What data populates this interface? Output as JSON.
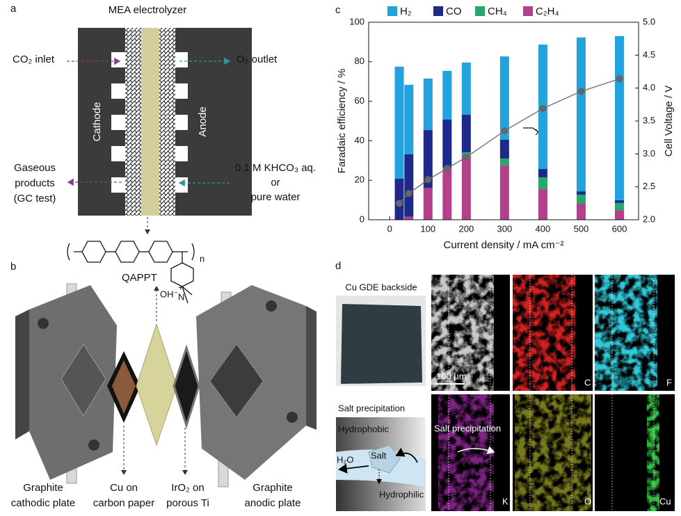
{
  "chart_data": {
    "type": "bar",
    "title_letter": "c",
    "x_label": "Current density / mA cm⁻²",
    "y_label": "Faradaic efficiency / %",
    "y2_label": "Cell Voltage / V",
    "x": [
      25,
      50,
      100,
      150,
      200,
      300,
      400,
      500,
      600
    ],
    "xlim": [
      -55,
      650
    ],
    "xticks": [
      0,
      100,
      200,
      300,
      400,
      500,
      600
    ],
    "ylim": [
      0,
      100
    ],
    "yticks": [
      0,
      20,
      40,
      60,
      80,
      100
    ],
    "y2lim": [
      2,
      5
    ],
    "y2ticks": [
      {
        "value": 2,
        "label": "2.0"
      },
      2.5,
      {
        "value": 3,
        "label": "3.0"
      },
      3.5,
      {
        "value": 4,
        "label": "4.0"
      },
      4.5,
      {
        "value": 5,
        "label": "5.0"
      }
    ],
    "stacked": true,
    "legend": "top",
    "series": [
      {
        "name": "H₂",
        "color": "#23a3dd",
        "values": [
          56.7,
          35.2,
          26.1,
          24.7,
          26.4,
          42.2,
          63,
          77.9,
          83.1
        ]
      },
      {
        "name": "CO",
        "color": "#1d2a8c",
        "values": [
          20.8,
          31.6,
          29.2,
          24.3,
          19,
          9.5,
          4.2,
          1.7,
          1.4
        ]
      },
      {
        "name": "CH₄",
        "color": "#26a86b",
        "values": [
          0,
          0,
          0,
          0,
          1.8,
          3.5,
          6,
          4.6,
          3.6
        ]
      },
      {
        "name": "C₂H₄",
        "color": "#b3408b",
        "values": [
          0,
          1.5,
          16.2,
          26.4,
          32.4,
          27.5,
          15.5,
          8.1,
          4.9
        ]
      },
      {
        "type": "line",
        "axis": "y2",
        "color": "#707070",
        "values": [
          2.25,
          2.4,
          2.61,
          2.78,
          2.95,
          3.35,
          3.69,
          3.95,
          4.14
        ]
      }
    ]
  },
  "panel_a": {
    "letter": "a",
    "title": "MEA electrolyzer",
    "co2_inlet": "CO₂ inlet",
    "o2_outlet": "O₂ outlet",
    "cathode": "Cathode",
    "anode": "Anode",
    "gaseous": [
      "Gaseous",
      "products",
      "(GC test)"
    ],
    "electrolyte": [
      "0.1 M KHCO₃ aq.",
      "or",
      "pure water"
    ],
    "polymer": {
      "name": "QAPPT",
      "n": "n",
      "counterion": "OH⁻",
      "nitrogen": "N",
      "charge": "+"
    }
  },
  "panel_b": {
    "letter": "b",
    "labels": [
      [
        "Graphite",
        "cathodic plate"
      ],
      [
        "Cu on",
        "carbon paper"
      ],
      [
        "IrO₂ on",
        "porous Ti"
      ],
      [
        "Graphite",
        "anodic plate"
      ]
    ]
  },
  "panel_d": {
    "letter": "d",
    "photo": "Cu GDE backside",
    "scale": "100 μm",
    "maps": [
      "C",
      "F",
      "K",
      "O",
      "Cu"
    ],
    "schematic": {
      "title": "Salt precipitation",
      "top": "Hydrophobic",
      "bottom": "Hydrophilic",
      "salt": "Salt",
      "water": "H₂O"
    },
    "k_note": "Salt precipitation"
  }
}
